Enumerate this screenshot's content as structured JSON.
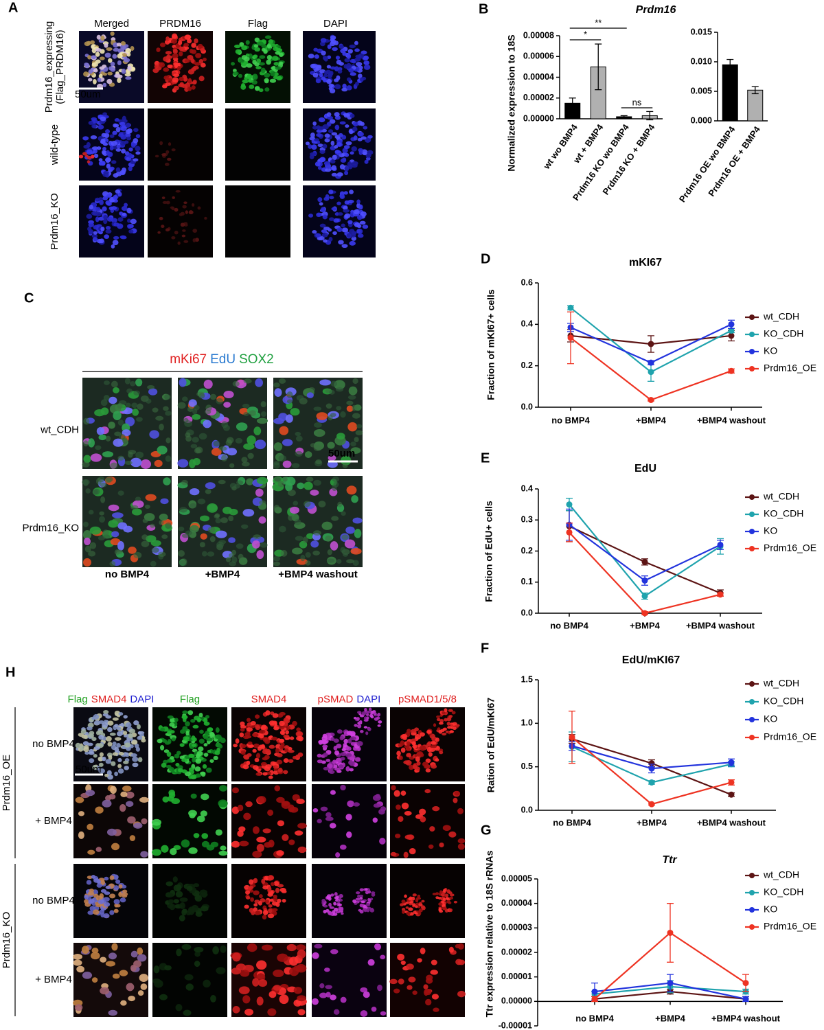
{
  "figure": {
    "panel_labels": [
      "A",
      "B",
      "C",
      "D",
      "E",
      "F",
      "G",
      "H"
    ],
    "a": {
      "columns": [
        "Merged",
        "PRDM16",
        "Flag",
        "DAPI"
      ],
      "rows": [
        [
          "Prdm16_expressing",
          "(Flag_PRDM16)"
        ],
        [
          "wild-type"
        ],
        [
          "Prdm16_KO"
        ]
      ],
      "scale_bar": "50um"
    },
    "c": {
      "stains": [
        "mKi67",
        "EdU",
        "SOX2"
      ],
      "rows": [
        "wt_CDH",
        "Prdm16_KO"
      ],
      "columns": [
        "no BMP4",
        "+BMP4",
        "+BMP4 washout"
      ],
      "scale_bar": "50um"
    },
    "h": {
      "columns": [
        [
          "Flag",
          "SMAD4",
          "DAPI"
        ],
        [
          "Flag"
        ],
        [
          "SMAD4"
        ],
        [
          "pSMAD",
          "DAPI"
        ],
        [
          "pSMAD1/5/8"
        ]
      ],
      "groups": [
        "Prdm16_OE",
        "Prdm16_KO"
      ],
      "rows": [
        "no BMP4",
        "+ BMP4",
        "no BMP4",
        "+ BMP4"
      ],
      "scale_bar": "50um"
    }
  },
  "chart_data": [
    {
      "type": "bar",
      "title": "Prdm16",
      "ylabel": "Normalized expression to 18S",
      "categories": [
        "wt wo BMP4",
        "wt + BMP4",
        "Prdm16 KO wo BMP4",
        "Prdm16 KO + BMP4"
      ],
      "values": [
        1.5e-05,
        5e-05,
        2e-06,
        3e-06
      ],
      "errors": [
        5e-06,
        2.2e-05,
        1e-06,
        4e-06
      ],
      "colors": [
        "#000000",
        "#b0b0b0",
        "#000000",
        "#b0b0b0"
      ],
      "ylim": [
        0,
        8e-05
      ],
      "yticks": [
        {
          "value": 0,
          "label": "0.00000"
        },
        2e-05,
        4e-05,
        6e-05,
        8e-05
      ],
      "annotations": [
        "**",
        "*",
        "ns"
      ]
    },
    {
      "type": "bar",
      "categories": [
        "Prdm16 OE wo BMP4",
        "Prdm16 OE + BMP4"
      ],
      "values": [
        0.0095,
        0.0052
      ],
      "errors": [
        0.0009,
        0.0006
      ],
      "colors": [
        "#000000",
        "#b0b0b0"
      ],
      "ylim": [
        0,
        0.015
      ],
      "yticks": [
        {
          "value": 0,
          "label": "0.000"
        },
        0.005,
        {
          "value": 0.01,
          "label": "0.010"
        },
        0.015
      ]
    },
    {
      "type": "line",
      "title": "mKI67",
      "ylabel": "Fraction of mKI67+ cells",
      "categories": [
        "no BMP4",
        "+BMP4",
        "+BMP4 washout"
      ],
      "series": [
        {
          "name": "wt_CDH",
          "color": "#5c1414",
          "values": [
            0.345,
            0.305,
            0.345
          ],
          "errors": [
            0.03,
            0.04,
            0.025
          ]
        },
        {
          "name": "KO_CDH",
          "color": "#1fa3ad",
          "values": [
            0.48,
            0.17,
            0.37
          ],
          "errors": [
            0.01,
            0.045,
            0.01
          ]
        },
        {
          "name": "KO",
          "color": "#2233dd",
          "values": [
            0.385,
            0.215,
            0.4
          ],
          "errors": [
            0.02,
            0.01,
            0.02
          ]
        },
        {
          "name": "Prdm16_OE",
          "color": "#ee3322",
          "values": [
            0.335,
            0.035,
            0.175
          ],
          "errors": [
            0.125,
            0.005,
            0.01
          ]
        }
      ],
      "ylim": [
        0,
        0.6
      ],
      "yticks": [
        {
          "value": 0,
          "label": "0.0"
        },
        0.2,
        0.4,
        0.6
      ],
      "legend": "right"
    },
    {
      "type": "line",
      "title": "EdU",
      "ylabel": "Fraction of EdU+ cells",
      "categories": [
        "no BMP4",
        "+BMP4",
        "+BMP4 washout"
      ],
      "series": [
        {
          "name": "wt_CDH",
          "color": "#5c1414",
          "values": [
            0.28,
            0.165,
            0.065
          ],
          "errors": [
            0.05,
            0.01,
            0.01
          ]
        },
        {
          "name": "KO_CDH",
          "color": "#1fa3ad",
          "values": [
            0.35,
            0.055,
            0.215
          ],
          "errors": [
            0.02,
            0.01,
            0.025
          ]
        },
        {
          "name": "KO",
          "color": "#2233dd",
          "values": [
            0.285,
            0.105,
            0.22
          ],
          "errors": [
            0.05,
            0.015,
            0.015
          ]
        },
        {
          "name": "Prdm16_OE",
          "color": "#ee3322",
          "values": [
            0.26,
            0.0,
            0.06
          ],
          "errors": [
            0.03,
            0.005,
            0.005
          ]
        }
      ],
      "ylim": [
        0,
        0.4
      ],
      "yticks": [
        {
          "value": 0,
          "label": "0.0"
        },
        0.1,
        0.2,
        0.3,
        0.4
      ],
      "legend": "right"
    },
    {
      "type": "line",
      "title": "EdU/mKI67",
      "ylabel": "Ration of EdU/mKI67",
      "categories": [
        "no BMP4",
        "+BMP4",
        "+BMP4 washout"
      ],
      "series": [
        {
          "name": "wt_CDH",
          "color": "#5c1414",
          "values": [
            0.82,
            0.54,
            0.18
          ],
          "errors": [
            0.05,
            0.04,
            0.02
          ]
        },
        {
          "name": "KO_CDH",
          "color": "#1fa3ad",
          "values": [
            0.73,
            0.32,
            0.53
          ],
          "errors": [
            0.17,
            0.02,
            0.03
          ]
        },
        {
          "name": "KO",
          "color": "#2233dd",
          "values": [
            0.74,
            0.48,
            0.55
          ],
          "errors": [
            0.05,
            0.05,
            0.04
          ]
        },
        {
          "name": "Prdm16_OE",
          "color": "#ee3322",
          "values": [
            0.84,
            0.07,
            0.32
          ],
          "errors": [
            0.3,
            0.01,
            0.03
          ]
        }
      ],
      "ylim": [
        0,
        1.5
      ],
      "yticks": [
        {
          "value": 0,
          "label": "0.0"
        },
        0.5,
        {
          "value": 1,
          "label": "1.0"
        },
        1.5
      ],
      "legend": "right"
    },
    {
      "type": "line",
      "title": "Ttr",
      "ylabel": "Ttr expression relative to 18S rRNAs",
      "categories": [
        "no BMP4",
        "+BMP4",
        "+BMP4 washout"
      ],
      "series": [
        {
          "name": "wt_CDH",
          "color": "#5c1414",
          "values": [
            1e-06,
            4e-06,
            1e-06
          ],
          "errors": [
            1e-06,
            1e-06,
            1e-06
          ]
        },
        {
          "name": "KO_CDH",
          "color": "#1fa3ad",
          "values": [
            3e-06,
            6e-06,
            4e-06
          ],
          "errors": [
            1e-06,
            2.5e-06,
            1e-06
          ]
        },
        {
          "name": "KO",
          "color": "#2233dd",
          "values": [
            4e-06,
            7.5e-06,
            1e-06
          ],
          "errors": [
            3.5e-06,
            3.5e-06,
            1e-06
          ]
        },
        {
          "name": "Prdm16_OE",
          "color": "#ee3322",
          "values": [
            1e-06,
            2.8e-05,
            7.5e-06
          ],
          "errors": [
            1e-06,
            1.2e-05,
            3.5e-06
          ]
        }
      ],
      "ylim": [
        -1e-05,
        5e-05
      ],
      "yticks": [
        -1e-05,
        {
          "value": 0,
          "label": "0.00000"
        },
        1e-05,
        2e-05,
        3e-05,
        4e-05,
        5e-05
      ],
      "legend": "right"
    }
  ]
}
